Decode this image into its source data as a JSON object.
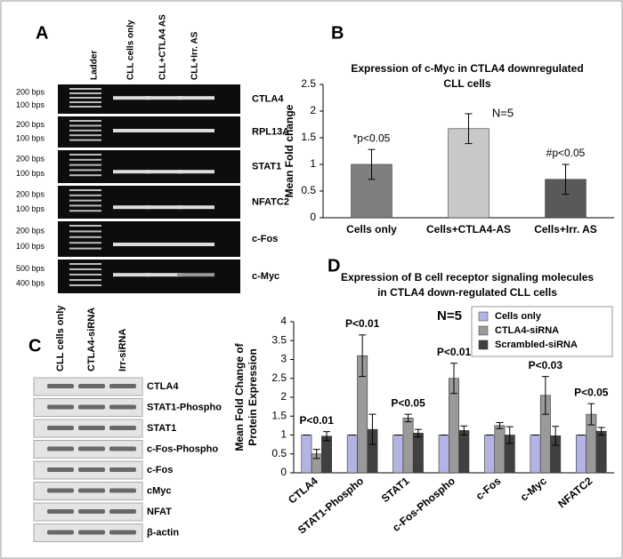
{
  "panels": {
    "A": {
      "letter": "A",
      "lanes": [
        "Ladder",
        "CLL cells only",
        "CLL+CTLA4 AS",
        "CLL+Irr. AS"
      ],
      "rows": [
        {
          "gene": "CTLA4",
          "sizes": [
            "200 bps",
            "100 bps"
          ]
        },
        {
          "gene": "RPL13A",
          "sizes": [
            "200 bps",
            "100 bps"
          ]
        },
        {
          "gene": "STAT1",
          "sizes": [
            "200 bps",
            "100 bps"
          ]
        },
        {
          "gene": "NFATC2",
          "sizes": [
            "200 bps",
            "100 bps"
          ]
        },
        {
          "gene": "c-Fos",
          "sizes": [
            "200 bps",
            "100 bps"
          ]
        },
        {
          "gene": "c-Myc",
          "sizes": [
            "500 bps",
            "400 bps"
          ]
        }
      ]
    },
    "B": {
      "letter": "B"
    },
    "C": {
      "letter": "C",
      "lanes": [
        "CLL cells only",
        "CTLA4-siRNA",
        "Irr-siRNA"
      ],
      "rows": [
        "CTLA4",
        "STAT1-Phospho",
        "STAT1",
        "c-Fos-Phospho",
        "c-Fos",
        "cMyc",
        "NFAT",
        "β-actin"
      ]
    },
    "D": {
      "letter": "D"
    }
  },
  "chart_data": [
    {
      "type": "bar",
      "title": [
        "Expression of c-Myc in CTLA4 downregulated",
        "CLL cells"
      ],
      "ylabel": [
        "Mean Fold change"
      ],
      "categories": [
        "Cells only",
        "Cells+CTLA4-AS",
        "Cells+Irr. AS"
      ],
      "values": [
        1,
        1.67,
        0.72
      ],
      "errors": [
        0.28,
        0.28,
        0.28
      ],
      "colors": [
        "#7f7f7f",
        "#c8c8c8",
        "#595959"
      ],
      "ylim": [
        0,
        2.5
      ],
      "yticks": [
        0,
        0.5,
        1,
        1.5,
        2,
        2.5
      ],
      "note": "N=5",
      "annotations": [
        {
          "text": "*p<0.05",
          "category": "Cells only"
        },
        {
          "text": "#p<0.05",
          "category": "Cells+Irr. AS"
        }
      ]
    },
    {
      "type": "bar",
      "title": [
        "Expression of B cell receptor signaling molecules",
        "in CTLA4 down-regulated CLL cells"
      ],
      "ylabel": [
        "Mean Fold Change of",
        "Protein Expression"
      ],
      "categories": [
        "CTLA4",
        "STAT1-Phospho",
        "STAT1",
        "c-Fos-Phospho",
        "c-Fos",
        "c-Myc",
        "NFATC2"
      ],
      "series": [
        {
          "name": "Cells only",
          "color": "#b4b4e4",
          "values": [
            1,
            1,
            1,
            1,
            1,
            1,
            1
          ],
          "errors": [
            0,
            0,
            0,
            0,
            0,
            0,
            0
          ]
        },
        {
          "name": "CTLA4-siRNA",
          "color": "#9a9a9a",
          "values": [
            0.5,
            3.1,
            1.45,
            2.5,
            1.25,
            2.05,
            1.55
          ],
          "errors": [
            0.12,
            0.55,
            0.1,
            0.4,
            0.08,
            0.5,
            0.28
          ]
        },
        {
          "name": "Scrambled-siRNA",
          "color": "#404040",
          "values": [
            0.97,
            1.15,
            1.05,
            1.12,
            1.0,
            0.98,
            1.1
          ],
          "errors": [
            0.12,
            0.4,
            0.1,
            0.12,
            0.22,
            0.25,
            0.1
          ]
        }
      ],
      "ylim": [
        0,
        4
      ],
      "yticks": [
        0,
        0.5,
        1,
        1.5,
        2,
        2.5,
        3,
        3.5,
        4
      ],
      "legend": "upper right",
      "note": "N=5",
      "annotations": [
        {
          "text": "P<0.01",
          "category": "CTLA4"
        },
        {
          "text": "P<0.01",
          "category": "STAT1-Phospho"
        },
        {
          "text": "P<0.05",
          "category": "STAT1"
        },
        {
          "text": "P<0.01",
          "category": "c-Fos-Phospho"
        },
        {
          "text": "P<0.03",
          "category": "c-Myc"
        },
        {
          "text": "P<0.05",
          "category": "NFATC2"
        }
      ]
    }
  ]
}
